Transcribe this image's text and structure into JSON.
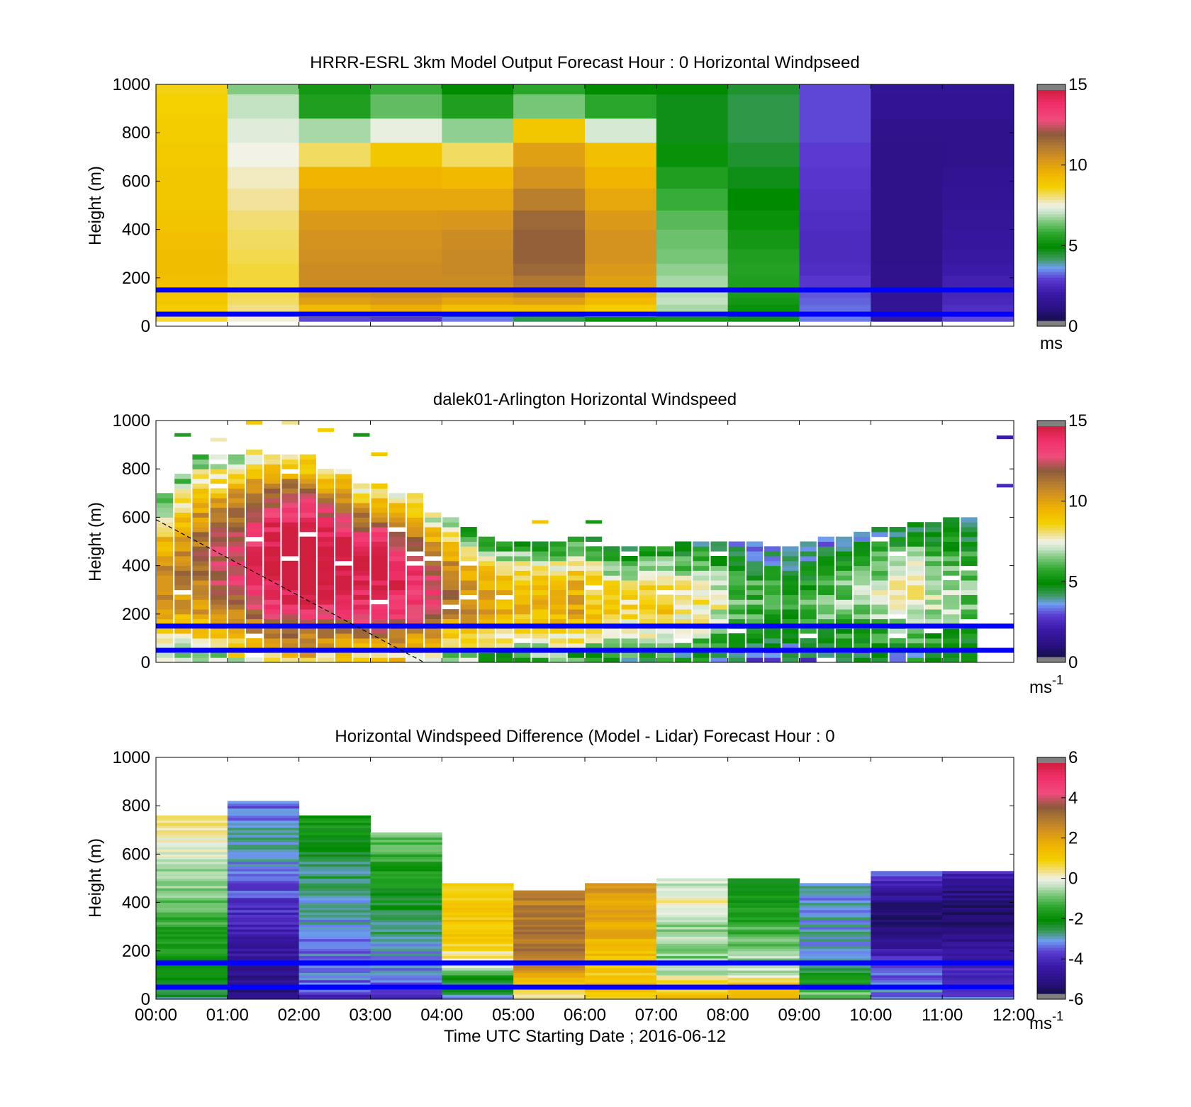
{
  "colorscale": {
    "name": "windspeed",
    "stops": [
      [
        0.0,
        "#14104a"
      ],
      [
        0.05,
        "#2a1080"
      ],
      [
        0.12,
        "#3a1aa8"
      ],
      [
        0.18,
        "#5a3ad0"
      ],
      [
        0.23,
        "#6e9ef0"
      ],
      [
        0.27,
        "#3a9a5a"
      ],
      [
        0.32,
        "#008a00"
      ],
      [
        0.38,
        "#2ea82e"
      ],
      [
        0.43,
        "#7cc87c"
      ],
      [
        0.47,
        "#c8e4c8"
      ],
      [
        0.5,
        "#f2f2e6"
      ],
      [
        0.53,
        "#f0e090"
      ],
      [
        0.58,
        "#f4d000"
      ],
      [
        0.64,
        "#f0b400"
      ],
      [
        0.7,
        "#d8961c"
      ],
      [
        0.76,
        "#b07832"
      ],
      [
        0.81,
        "#8c5a3c"
      ],
      [
        0.87,
        "#f04c7c"
      ],
      [
        0.94,
        "#f0306a"
      ],
      [
        1.0,
        "#d01e3e"
      ]
    ]
  },
  "x_tick_labels": [
    "00:00",
    "01:00",
    "02:00",
    "03:00",
    "04:00",
    "05:00",
    "06:00",
    "07:00",
    "08:00",
    "09:00",
    "10:00",
    "11:00",
    "12:00"
  ],
  "x_axis_label": "Time UTC  Starting Date ; 2016-06-12",
  "y_tick_labels": [
    "0",
    "200",
    "400",
    "600",
    "800",
    "1000"
  ],
  "y_axis_label": "Height (m)",
  "chart_data": [
    {
      "type": "heatmap",
      "title": "HRRR-ESRL 3km Model Output   Forecast Hour : 0 Horizontal Windpseed",
      "ylabel": "Height (m)",
      "ylim": [
        0,
        1000
      ],
      "xlim": [
        "00:00",
        "12:00"
      ],
      "colorbar": {
        "min": 0,
        "max": 15,
        "ticks": [
          "0",
          "5",
          "10",
          "15"
        ],
        "unit": "ms"
      },
      "reference_lines_m": [
        150,
        50
      ],
      "row_heights_m": [
        20,
        40,
        60,
        90,
        120,
        160,
        210,
        260,
        320,
        400,
        480,
        570,
        660,
        760,
        860,
        960,
        1000
      ],
      "columns": [
        {
          "time": "00:00",
          "values": [
            8.4,
            8.6,
            8.8,
            9.0,
            9.1,
            9.2,
            9.3,
            9.3,
            9.2,
            9.1,
            9.0,
            9.0,
            8.9,
            8.8,
            8.7,
            8.6
          ]
        },
        {
          "time": "01:00",
          "values": [
            7.6,
            7.8,
            8.0,
            8.2,
            8.3,
            8.4,
            8.4,
            8.3,
            8.2,
            8.1,
            7.9,
            7.7,
            7.5,
            7.3,
            7.0,
            6.5
          ]
        },
        {
          "time": "02:00",
          "values": [
            2.8,
            8.6,
            9.4,
            10.2,
            10.6,
            10.8,
            10.8,
            10.7,
            10.6,
            10.4,
            10.0,
            9.6,
            8.2,
            6.8,
            5.4,
            5.2
          ]
        },
        {
          "time": "03:00",
          "values": [
            2.6,
            8.4,
            9.8,
            10.4,
            10.7,
            10.8,
            10.8,
            10.7,
            10.6,
            10.4,
            10.0,
            9.6,
            9.0,
            7.4,
            6.2,
            5.8
          ]
        },
        {
          "time": "04:00",
          "values": [
            3.2,
            5.6,
            9.2,
            10.0,
            10.6,
            10.8,
            10.9,
            10.9,
            10.8,
            10.5,
            10.0,
            9.4,
            8.2,
            6.6,
            5.4,
            4.8
          ]
        },
        {
          "time": "05:00",
          "values": [
            4.2,
            5.4,
            9.2,
            10.2,
            11.0,
            11.4,
            11.8,
            12.0,
            12.0,
            11.8,
            11.2,
            10.6,
            10.2,
            9.0,
            6.4,
            5.6
          ]
        },
        {
          "time": "06:00",
          "values": [
            5.0,
            7.2,
            8.8,
            9.4,
            9.8,
            10.2,
            10.4,
            10.6,
            10.6,
            10.4,
            10.0,
            9.6,
            9.2,
            7.2,
            5.6,
            4.8
          ]
        },
        {
          "time": "07:00",
          "values": [
            5.2,
            6.2,
            6.8,
            7.0,
            6.9,
            6.8,
            6.6,
            6.4,
            6.3,
            6.1,
            5.8,
            5.4,
            5.0,
            4.6,
            4.6,
            4.8
          ]
        },
        {
          "time": "08:00",
          "values": [
            4.6,
            4.8,
            5.0,
            5.2,
            5.3,
            5.4,
            5.5,
            5.4,
            5.2,
            5.0,
            4.8,
            4.6,
            4.4,
            4.2,
            4.2,
            4.4
          ]
        },
        {
          "time": "09:00",
          "values": [
            3.2,
            3.2,
            3.1,
            3.0,
            2.9,
            2.6,
            2.4,
            2.3,
            2.3,
            2.4,
            2.5,
            2.6,
            2.7,
            2.8,
            2.8,
            2.8
          ]
        },
        {
          "time": "10:00",
          "values": [
            1.4,
            1.4,
            1.3,
            1.2,
            1.2,
            1.1,
            1.1,
            1.0,
            1.0,
            1.0,
            1.0,
            1.0,
            1.0,
            1.1,
            1.2,
            1.3
          ]
        },
        {
          "time": "11:00",
          "values": [
            2.8,
            2.6,
            2.4,
            2.2,
            2.1,
            2.0,
            1.8,
            1.6,
            1.5,
            1.4,
            1.3,
            1.2,
            1.1,
            1.1,
            1.2,
            1.3
          ]
        }
      ]
    },
    {
      "type": "heatmap",
      "title": "dalek01-Arlington  Horizontal Windspeed",
      "ylabel": "Height (m)",
      "ylim": [
        0,
        1000
      ],
      "xlim": [
        "00:00",
        "12:00"
      ],
      "colorbar": {
        "min": 0,
        "max": 15,
        "ticks": [
          "0",
          "5",
          "10",
          "15"
        ],
        "unit": "ms",
        "unit_exponent": "-1"
      },
      "reference_lines_m": [
        150,
        50
      ],
      "overlay_line": {
        "style": "dashed",
        "points": [
          [
            "00:00",
            590
          ],
          [
            "03:45",
            0
          ]
        ]
      },
      "profile_timestep_minutes": 15,
      "profile_top_m": [
        690,
        780,
        860,
        860,
        860,
        870,
        860,
        860,
        850,
        820,
        800,
        740,
        730,
        700,
        690,
        620,
        600,
        550,
        510,
        500,
        500,
        500,
        500,
        510,
        510,
        480,
        480,
        470,
        480,
        490,
        500,
        500,
        500,
        490,
        480,
        470,
        490,
        520,
        520,
        530,
        560,
        560,
        580,
        580,
        600,
        590
      ],
      "profile_mean_speed": [
        9.0,
        9.4,
        9.8,
        10.4,
        11.0,
        11.8,
        12.8,
        13.2,
        13.4,
        13.0,
        12.8,
        12.4,
        12.6,
        12.2,
        11.6,
        11.0,
        9.6,
        9.0,
        8.6,
        8.2,
        8.0,
        8.0,
        8.2,
        8.4,
        7.6,
        7.2,
        7.0,
        7.4,
        7.6,
        6.8,
        6.6,
        6.2,
        5.2,
        5.0,
        4.8,
        4.6,
        4.8,
        5.2,
        5.4,
        5.6,
        6.0,
        6.2,
        6.6,
        6.0,
        5.8,
        5.4
      ],
      "sparse_high_returns": [
        {
          "time": "00:15",
          "height_m": 940,
          "value": 5.4
        },
        {
          "time": "00:45",
          "height_m": 920,
          "value": 7.8
        },
        {
          "time": "01:15",
          "height_m": 990,
          "value": 9.0
        },
        {
          "time": "01:45",
          "height_m": 990,
          "value": 8.0
        },
        {
          "time": "02:15",
          "height_m": 960,
          "value": 8.8
        },
        {
          "time": "02:45",
          "height_m": 940,
          "value": 5.2
        },
        {
          "time": "03:00",
          "height_m": 860,
          "value": 9.0
        },
        {
          "time": "05:15",
          "height_m": 580,
          "value": 9.0
        },
        {
          "time": "06:00",
          "height_m": 580,
          "value": 5.2
        },
        {
          "time": "11:45",
          "height_m": 930,
          "value": 1.8
        },
        {
          "time": "11:45",
          "height_m": 730,
          "value": 2.2
        }
      ]
    },
    {
      "type": "heatmap",
      "title": "Horizontal Windspeed Difference (Model - Lidar) Forecast Hour : 0",
      "xlabel": "Time UTC  Starting Date ; 2016-06-12",
      "ylabel": "Height (m)",
      "ylim": [
        0,
        1000
      ],
      "xlim": [
        "00:00",
        "12:00"
      ],
      "colorbar": {
        "min": -6,
        "max": 6,
        "ticks": [
          "-6",
          "-4",
          "-2",
          "0",
          "2",
          "4",
          "6"
        ],
        "unit": "ms",
        "unit_exponent": "-1"
      },
      "reference_lines_m": [
        150,
        50
      ],
      "columns": [
        {
          "time": "00:00",
          "top_m": 760,
          "values_bottom_to_top": [
            -2.6,
            -2.4,
            -2.2,
            -2.0,
            -1.8,
            -1.6,
            -1.4,
            -1.2,
            -1.0,
            -0.8,
            -0.6,
            -0.4,
            -0.2,
            0.0,
            0.4,
            0.8
          ]
        },
        {
          "time": "01:00",
          "top_m": 820,
          "values_bottom_to_top": [
            -5.4,
            -5.2,
            -5.0,
            -4.8,
            -4.6,
            -4.4,
            -4.2,
            -4.0,
            -3.8,
            -3.6,
            -3.4,
            -3.2,
            -3.0,
            -3.2,
            -3.4,
            -3.6
          ]
        },
        {
          "time": "02:00",
          "top_m": 760,
          "values_bottom_to_top": [
            -4.2,
            -3.6,
            -3.4,
            -3.4,
            -3.4,
            -3.3,
            -3.2,
            -3.1,
            -3.0,
            -2.9,
            -2.8,
            -2.6,
            -2.4,
            -2.2,
            -2.0,
            -1.8
          ]
        },
        {
          "time": "03:00",
          "top_m": 690,
          "values_bottom_to_top": [
            -4.2,
            -3.8,
            -3.4,
            -3.3,
            -3.2,
            -3.0,
            -2.8,
            -2.6,
            -2.4,
            -2.2,
            -2.0,
            -1.8,
            -1.6,
            -1.4,
            -1.2,
            -1.0
          ]
        },
        {
          "time": "04:00",
          "top_m": 480,
          "values_bottom_to_top": [
            -3.0,
            -2.6,
            -2.4,
            -1.6,
            -0.6,
            0.2,
            0.6,
            0.8,
            1.0,
            1.0,
            1.2,
            1.2,
            1.2,
            1.2,
            1.2,
            1.0
          ]
        },
        {
          "time": "05:00",
          "top_m": 450,
          "values_bottom_to_top": [
            0.2,
            0.6,
            1.2,
            2.0,
            2.4,
            2.8,
            3.0,
            3.2,
            3.2,
            3.2,
            3.2,
            3.0,
            3.0,
            3.0,
            3.0,
            3.0
          ]
        },
        {
          "time": "06:00",
          "top_m": 480,
          "values_bottom_to_top": [
            1.2,
            1.4,
            1.2,
            1.2,
            1.0,
            1.2,
            1.4,
            1.6,
            1.8,
            2.0,
            2.0,
            2.2,
            2.2,
            2.2,
            2.2,
            2.2
          ]
        },
        {
          "time": "07:00",
          "top_m": 500,
          "values_bottom_to_top": [
            1.2,
            1.0,
            1.0,
            -0.6,
            -0.8,
            -0.8,
            -0.8,
            -0.8,
            -0.6,
            -0.6,
            -0.4,
            -0.4,
            0.4,
            -0.2,
            -0.2,
            -0.2
          ]
        },
        {
          "time": "08:00",
          "top_m": 500,
          "values_bottom_to_top": [
            1.2,
            1.0,
            1.0,
            -0.4,
            -0.6,
            -0.6,
            -0.8,
            -1.0,
            -1.2,
            -1.4,
            -1.6,
            -1.8,
            -2.0,
            -2.0,
            -2.2,
            -2.2
          ]
        },
        {
          "time": "09:00",
          "top_m": 480,
          "values_bottom_to_top": [
            -1.0,
            -1.2,
            -1.6,
            -2.2,
            -2.6,
            -2.8,
            -3.0,
            -3.2,
            -3.2,
            -3.2,
            -3.2,
            -3.2,
            -3.2,
            -3.2,
            -3.2,
            -3.2
          ]
        },
        {
          "time": "10:00",
          "top_m": 530,
          "values_bottom_to_top": [
            -3.4,
            -3.4,
            -3.4,
            -3.6,
            -4.0,
            -4.4,
            -4.8,
            -5.2,
            -5.4,
            -5.6,
            -5.6,
            -5.4,
            -5.0,
            -4.6,
            -4.2,
            -3.4
          ]
        },
        {
          "time": "11:00",
          "top_m": 530,
          "values_bottom_to_top": [
            -3.6,
            -3.8,
            -4.0,
            -4.2,
            -4.6,
            -4.8,
            -5.0,
            -5.2,
            -5.6,
            -5.8,
            -5.8,
            -5.6,
            -5.4,
            -5.0,
            -4.6,
            -4.2
          ]
        }
      ]
    }
  ]
}
